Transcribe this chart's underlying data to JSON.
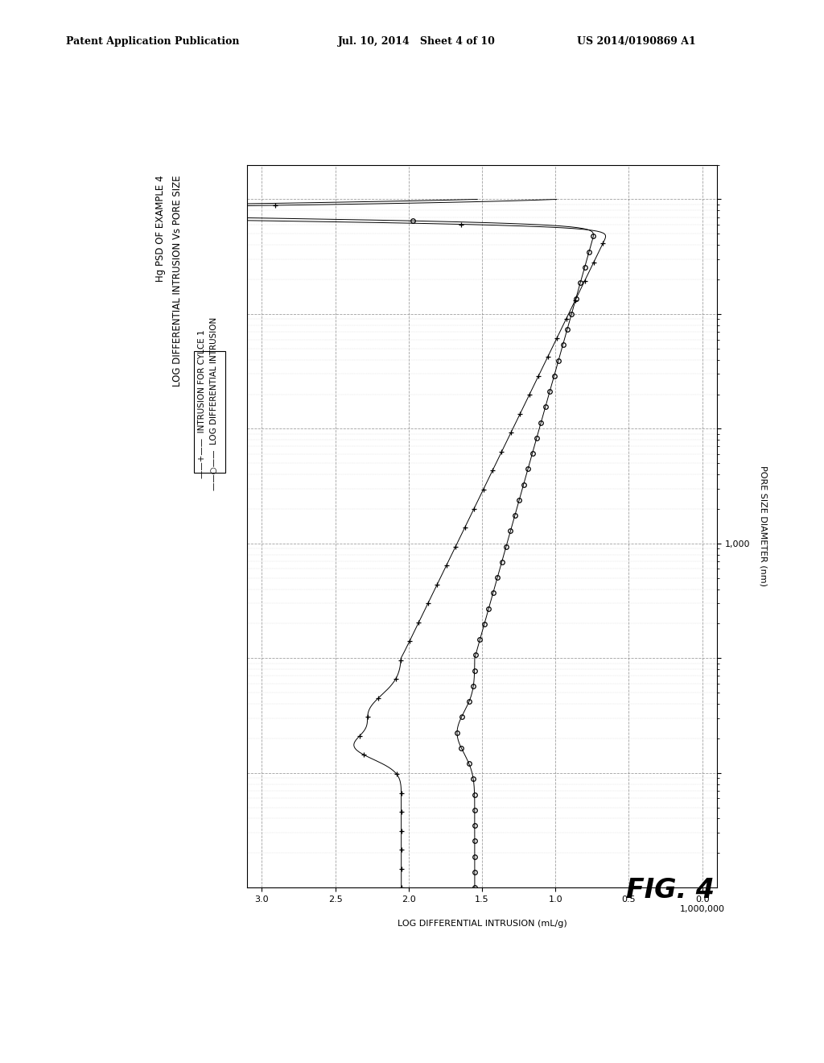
{
  "title1": "Hg PSD OF EXAMPLE 4",
  "title2": "LOG DIFFERENTIAL INTRUSION Vs PORE SIZE",
  "xlabel": "LOG DIFFERENTIAL INTRUSION (mL/g)",
  "ylabel": "PORE SIZE DIAMETER (nm)",
  "fig_label": "FIG. 4",
  "patent_line1": "Patent Application Publication",
  "patent_line2": "Jul. 10, 2014   Sheet 4 of 10",
  "patent_line3": "US 2014/0190869 A1",
  "legend1": "INTRUSION FOR CYLCE 1",
  "legend2": "LOG DIFFERENTIAL INTRUSION",
  "xticks": [
    3.0,
    2.5,
    2.0,
    1.5,
    1.0,
    0.5,
    0.0
  ],
  "xticklabels": [
    "3.0",
    "2.5",
    "2.0",
    "1.5",
    "1.0",
    "0.5",
    "0.0"
  ],
  "ytick_1000": "1,000",
  "ytick_1000000": "1,000,000",
  "xlim_left": 3.1,
  "xlim_right": -0.1,
  "ylim_bottom": 1.0,
  "ylim_top": 2000000,
  "background": "#ffffff",
  "line_color": "#000000",
  "grid_color": "#888888"
}
